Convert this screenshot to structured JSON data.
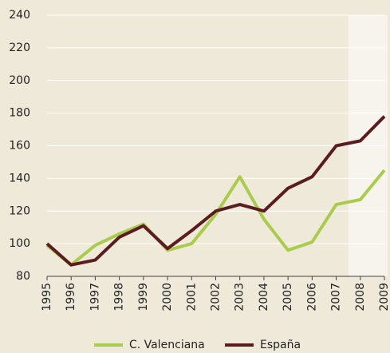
{
  "chart_data": {
    "type": "line",
    "categories": [
      "1995",
      "1996",
      "1997",
      "1998",
      "1999",
      "2000",
      "2001",
      "2002",
      "2003",
      "2004",
      "2005",
      "2006",
      "2007",
      "2008",
      "2009"
    ],
    "series": [
      {
        "name": "C. Valenciana",
        "color": "#a9cc4c",
        "values": [
          99,
          87,
          99,
          106,
          112,
          96,
          100,
          118,
          141,
          115,
          96,
          101,
          124,
          127,
          145
        ]
      },
      {
        "name": "España",
        "color": "#5b1c1f",
        "values": [
          100,
          87,
          90,
          104,
          111,
          97,
          108,
          120,
          124,
          120,
          134,
          141,
          160,
          163,
          178
        ]
      }
    ],
    "ylim": [
      80,
      240
    ],
    "yticks": [
      80,
      100,
      120,
      140,
      160,
      180,
      200,
      220,
      240
    ],
    "grid": true
  }
}
